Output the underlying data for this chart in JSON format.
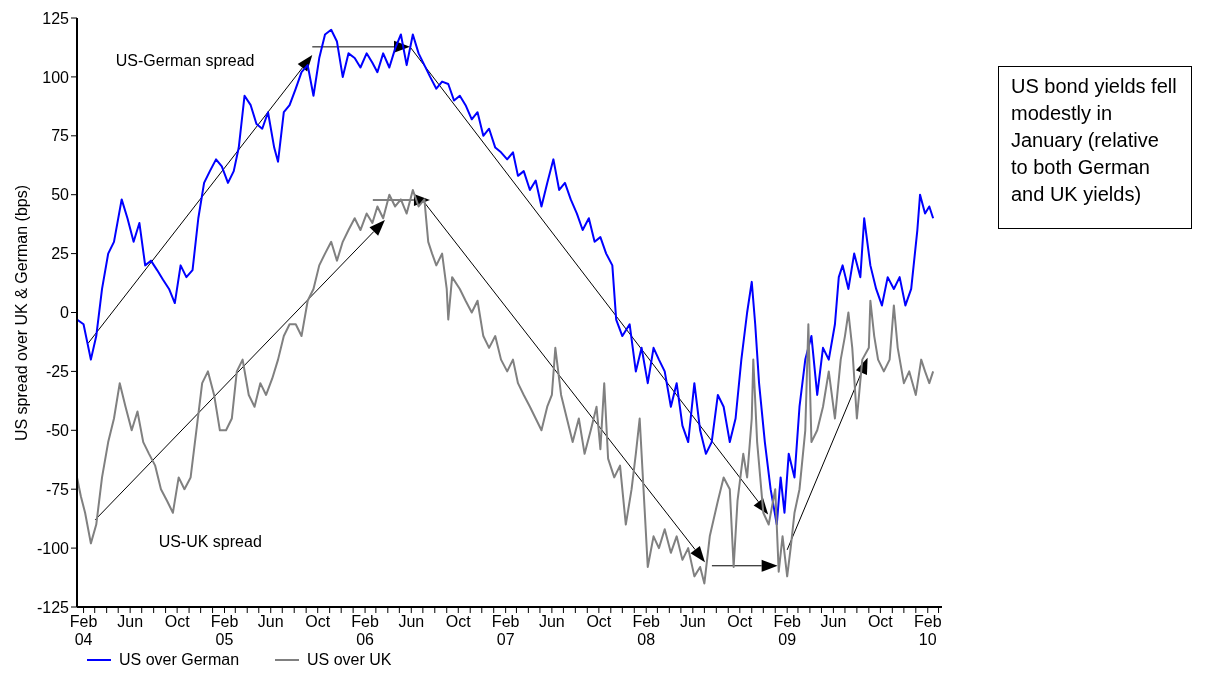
{
  "chart_data": {
    "type": "line",
    "ylabel": "US spread over UK & German (bps)",
    "xlim": [
      "2004-01-15",
      "2010-03-10"
    ],
    "xticks": [
      {
        "value": "2004-02-01",
        "label": "Feb 04"
      },
      {
        "value": "2004-03-01",
        "label": null
      },
      {
        "value": "2004-04-01",
        "label": null
      },
      {
        "value": "2004-05-01",
        "label": null
      },
      {
        "value": "2004-06-01",
        "label": "Jun"
      },
      {
        "value": "2004-07-01",
        "label": null
      },
      {
        "value": "2004-08-01",
        "label": null
      },
      {
        "value": "2004-09-01",
        "label": null
      },
      {
        "value": "2004-10-01",
        "label": "Oct"
      },
      {
        "value": "2004-11-01",
        "label": null
      },
      {
        "value": "2004-12-01",
        "label": null
      },
      {
        "value": "2005-01-01",
        "label": null
      },
      {
        "value": "2005-02-01",
        "label": "Feb 05"
      },
      {
        "value": "2005-03-01",
        "label": null
      },
      {
        "value": "2005-04-01",
        "label": null
      },
      {
        "value": "2005-05-01",
        "label": null
      },
      {
        "value": "2005-06-01",
        "label": "Jun"
      },
      {
        "value": "2005-07-01",
        "label": null
      },
      {
        "value": "2005-08-01",
        "label": null
      },
      {
        "value": "2005-09-01",
        "label": null
      },
      {
        "value": "2005-10-01",
        "label": "Oct"
      },
      {
        "value": "2005-11-01",
        "label": null
      },
      {
        "value": "2005-12-01",
        "label": null
      },
      {
        "value": "2006-01-01",
        "label": null
      },
      {
        "value": "2006-02-01",
        "label": "Feb 06"
      },
      {
        "value": "2006-03-01",
        "label": null
      },
      {
        "value": "2006-04-01",
        "label": null
      },
      {
        "value": "2006-05-01",
        "label": null
      },
      {
        "value": "2006-06-01",
        "label": "Jun"
      },
      {
        "value": "2006-07-01",
        "label": null
      },
      {
        "value": "2006-08-01",
        "label": null
      },
      {
        "value": "2006-09-01",
        "label": null
      },
      {
        "value": "2006-10-01",
        "label": "Oct"
      },
      {
        "value": "2006-11-01",
        "label": null
      },
      {
        "value": "2006-12-01",
        "label": null
      },
      {
        "value": "2007-01-01",
        "label": null
      },
      {
        "value": "2007-02-01",
        "label": "Feb 07"
      },
      {
        "value": "2007-03-01",
        "label": null
      },
      {
        "value": "2007-04-01",
        "label": null
      },
      {
        "value": "2007-05-01",
        "label": null
      },
      {
        "value": "2007-06-01",
        "label": "Jun"
      },
      {
        "value": "2007-07-01",
        "label": null
      },
      {
        "value": "2007-08-01",
        "label": null
      },
      {
        "value": "2007-09-01",
        "label": null
      },
      {
        "value": "2007-10-01",
        "label": "Oct"
      },
      {
        "value": "2007-11-01",
        "label": null
      },
      {
        "value": "2007-12-01",
        "label": null
      },
      {
        "value": "2008-01-01",
        "label": null
      },
      {
        "value": "2008-02-01",
        "label": "Feb 08"
      },
      {
        "value": "2008-03-01",
        "label": null
      },
      {
        "value": "2008-04-01",
        "label": null
      },
      {
        "value": "2008-05-01",
        "label": null
      },
      {
        "value": "2008-06-01",
        "label": "Jun"
      },
      {
        "value": "2008-07-01",
        "label": null
      },
      {
        "value": "2008-08-01",
        "label": null
      },
      {
        "value": "2008-09-01",
        "label": null
      },
      {
        "value": "2008-10-01",
        "label": "Oct"
      },
      {
        "value": "2008-11-01",
        "label": null
      },
      {
        "value": "2008-12-01",
        "label": null
      },
      {
        "value": "2009-01-01",
        "label": null
      },
      {
        "value": "2009-02-01",
        "label": "Feb 09"
      },
      {
        "value": "2009-03-01",
        "label": null
      },
      {
        "value": "2009-04-01",
        "label": null
      },
      {
        "value": "2009-05-01",
        "label": null
      },
      {
        "value": "2009-06-01",
        "label": "Jun"
      },
      {
        "value": "2009-07-01",
        "label": null
      },
      {
        "value": "2009-08-01",
        "label": null
      },
      {
        "value": "2009-09-01",
        "label": null
      },
      {
        "value": "2009-10-01",
        "label": "Oct"
      },
      {
        "value": "2009-11-01",
        "label": null
      },
      {
        "value": "2009-12-01",
        "label": null
      },
      {
        "value": "2010-01-01",
        "label": null
      },
      {
        "value": "2010-02-01",
        "label": "Feb 10"
      },
      {
        "value": "2010-03-01",
        "label": null
      }
    ],
    "ylim": [
      -125,
      125
    ],
    "yticks": [
      -125,
      -100,
      -75,
      -50,
      -25,
      0,
      25,
      50,
      75,
      100,
      125
    ],
    "legend": "bottom",
    "marker": "none",
    "line_style": "solid",
    "annotations": [
      "US bond yields fell modestly in January (relative to both German and UK yields)",
      "US-German spread",
      "US-UK spread"
    ],
    "series": [
      {
        "name": "US over German",
        "color": "#0000ff",
        "x": [
          "2004-01-15",
          "2004-02-01",
          "2004-02-20",
          "2004-03-05",
          "2004-03-20",
          "2004-04-05",
          "2004-04-20",
          "2004-05-10",
          "2004-05-25",
          "2004-06-10",
          "2004-06-25",
          "2004-07-10",
          "2004-07-25",
          "2004-08-10",
          "2004-08-25",
          "2004-09-10",
          "2004-09-25",
          "2004-10-10",
          "2004-10-25",
          "2004-11-10",
          "2004-11-25",
          "2004-12-10",
          "2004-12-25",
          "2005-01-10",
          "2005-01-25",
          "2005-02-10",
          "2005-02-25",
          "2005-03-10",
          "2005-03-25",
          "2005-04-10",
          "2005-04-25",
          "2005-05-10",
          "2005-05-25",
          "2005-06-10",
          "2005-06-20",
          "2005-07-05",
          "2005-07-20",
          "2005-08-05",
          "2005-08-20",
          "2005-09-05",
          "2005-09-20",
          "2005-10-05",
          "2005-10-20",
          "2005-11-05",
          "2005-11-20",
          "2005-12-05",
          "2005-12-20",
          "2006-01-05",
          "2006-01-20",
          "2006-02-05",
          "2006-02-20",
          "2006-03-05",
          "2006-03-20",
          "2006-04-05",
          "2006-04-20",
          "2006-05-05",
          "2006-05-20",
          "2006-06-05",
          "2006-06-20",
          "2006-07-05",
          "2006-07-20",
          "2006-08-05",
          "2006-08-20",
          "2006-09-05",
          "2006-09-20",
          "2006-10-05",
          "2006-10-20",
          "2006-11-05",
          "2006-11-20",
          "2006-12-05",
          "2006-12-20",
          "2007-01-05",
          "2007-01-20",
          "2007-02-05",
          "2007-02-20",
          "2007-03-05",
          "2007-03-20",
          "2007-04-05",
          "2007-04-20",
          "2007-05-05",
          "2007-05-20",
          "2007-06-05",
          "2007-06-20",
          "2007-07-05",
          "2007-07-20",
          "2007-08-05",
          "2007-08-20",
          "2007-09-05",
          "2007-09-20",
          "2007-10-05",
          "2007-10-20",
          "2007-11-05",
          "2007-11-15",
          "2007-12-01",
          "2007-12-20",
          "2008-01-05",
          "2008-01-20",
          "2008-02-05",
          "2008-02-20",
          "2008-03-05",
          "2008-03-20",
          "2008-04-05",
          "2008-04-20",
          "2008-05-05",
          "2008-05-20",
          "2008-06-05",
          "2008-06-20",
          "2008-07-05",
          "2008-07-20",
          "2008-08-05",
          "2008-08-20",
          "2008-09-05",
          "2008-09-20",
          "2008-10-05",
          "2008-10-20",
          "2008-11-01",
          "2008-11-10",
          "2008-11-20",
          "2008-12-05",
          "2008-12-20",
          "2009-01-05",
          "2009-01-15",
          "2009-01-25",
          "2009-02-05",
          "2009-02-20",
          "2009-03-05",
          "2009-03-20",
          "2009-04-05",
          "2009-04-20",
          "2009-05-05",
          "2009-05-20",
          "2009-06-05",
          "2009-06-15",
          "2009-06-25",
          "2009-07-10",
          "2009-07-25",
          "2009-08-10",
          "2009-08-20",
          "2009-09-05",
          "2009-09-20",
          "2009-10-05",
          "2009-10-20",
          "2009-11-05",
          "2009-11-20",
          "2009-12-05",
          "2009-12-20",
          "2010-01-05",
          "2010-01-12",
          "2010-01-25",
          "2010-02-05",
          "2010-02-15"
        ],
        "values": [
          -3,
          -5,
          -20,
          -10,
          10,
          25,
          30,
          48,
          40,
          30,
          38,
          20,
          22,
          18,
          14,
          10,
          4,
          20,
          15,
          18,
          40,
          55,
          60,
          65,
          62,
          55,
          60,
          70,
          92,
          88,
          80,
          78,
          85,
          70,
          64,
          85,
          88,
          95,
          102,
          105,
          92,
          108,
          118,
          120,
          115,
          100,
          110,
          108,
          104,
          110,
          106,
          102,
          110,
          104,
          112,
          118,
          105,
          118,
          110,
          105,
          100,
          95,
          98,
          97,
          90,
          92,
          88,
          82,
          85,
          75,
          78,
          70,
          68,
          65,
          68,
          58,
          60,
          52,
          56,
          45,
          55,
          65,
          52,
          55,
          48,
          42,
          35,
          40,
          30,
          32,
          25,
          20,
          -3,
          -10,
          -5,
          -25,
          -15,
          -30,
          -15,
          -20,
          -25,
          -40,
          -30,
          -48,
          -55,
          -30,
          -50,
          -60,
          -55,
          -35,
          -40,
          -55,
          -45,
          -20,
          0,
          13,
          -5,
          -30,
          -55,
          -75,
          -90,
          -70,
          -85,
          -60,
          -70,
          -40,
          -20,
          -10,
          -35,
          -15,
          -20,
          -5,
          15,
          20,
          10,
          25,
          15,
          40,
          20,
          10,
          3,
          15,
          10,
          15,
          3,
          10,
          35,
          50,
          42,
          45,
          40
        ]
      },
      {
        "name": "US over UK",
        "color": "#808080",
        "x": [
          "2004-01-15",
          "2004-01-25",
          "2004-02-05",
          "2004-02-20",
          "2004-03-05",
          "2004-03-20",
          "2004-04-05",
          "2004-04-20",
          "2004-05-05",
          "2004-05-20",
          "2004-06-05",
          "2004-06-20",
          "2004-07-05",
          "2004-07-20",
          "2004-08-05",
          "2004-08-20",
          "2004-09-05",
          "2004-09-20",
          "2004-10-05",
          "2004-10-20",
          "2004-11-05",
          "2004-11-20",
          "2004-12-05",
          "2004-12-20",
          "2005-01-05",
          "2005-01-20",
          "2005-02-05",
          "2005-02-20",
          "2005-03-05",
          "2005-03-20",
          "2005-04-05",
          "2005-04-20",
          "2005-05-05",
          "2005-05-20",
          "2005-06-05",
          "2005-06-20",
          "2005-07-05",
          "2005-07-20",
          "2005-08-05",
          "2005-08-20",
          "2005-09-05",
          "2005-09-20",
          "2005-10-05",
          "2005-10-20",
          "2005-11-05",
          "2005-11-20",
          "2005-12-05",
          "2005-12-20",
          "2006-01-05",
          "2006-01-20",
          "2006-02-05",
          "2006-02-20",
          "2006-03-05",
          "2006-03-20",
          "2006-04-05",
          "2006-04-20",
          "2006-05-05",
          "2006-05-20",
          "2006-06-05",
          "2006-06-20",
          "2006-07-05",
          "2006-07-15",
          "2006-07-25",
          "2006-08-05",
          "2006-08-20",
          "2006-09-01",
          "2006-09-05",
          "2006-09-15",
          "2006-10-05",
          "2006-10-20",
          "2006-11-05",
          "2006-11-20",
          "2006-12-05",
          "2006-12-20",
          "2007-01-05",
          "2007-01-20",
          "2007-02-05",
          "2007-02-20",
          "2007-03-05",
          "2007-03-20",
          "2007-04-05",
          "2007-04-20",
          "2007-05-05",
          "2007-05-20",
          "2007-06-01",
          "2007-06-10",
          "2007-06-25",
          "2007-07-10",
          "2007-07-25",
          "2007-08-10",
          "2007-08-25",
          "2007-09-10",
          "2007-09-25",
          "2007-10-05",
          "2007-10-15",
          "2007-10-25",
          "2007-11-10",
          "2007-11-25",
          "2007-12-10",
          "2007-12-25",
          "2008-01-05",
          "2008-01-15",
          "2008-01-25",
          "2008-02-05",
          "2008-02-20",
          "2008-03-05",
          "2008-03-20",
          "2008-04-05",
          "2008-04-20",
          "2008-05-05",
          "2008-05-20",
          "2008-06-05",
          "2008-06-20",
          "2008-07-01",
          "2008-07-15",
          "2008-08-05",
          "2008-08-20",
          "2008-09-05",
          "2008-09-15",
          "2008-09-25",
          "2008-10-10",
          "2008-10-20",
          "2008-11-01",
          "2008-11-05",
          "2008-11-15",
          "2008-12-01",
          "2008-12-15",
          "2009-01-01",
          "2009-01-10",
          "2009-01-20",
          "2009-02-01",
          "2009-02-10",
          "2009-02-20",
          "2009-03-05",
          "2009-03-20",
          "2009-03-28",
          "2009-04-05",
          "2009-04-20",
          "2009-05-05",
          "2009-05-20",
          "2009-06-05",
          "2009-06-20",
          "2009-07-01",
          "2009-07-10",
          "2009-07-20",
          "2009-08-01",
          "2009-08-15",
          "2009-09-01",
          "2009-09-05",
          "2009-09-15",
          "2009-09-25",
          "2009-10-10",
          "2009-10-25",
          "2009-11-05",
          "2009-11-15",
          "2009-12-01",
          "2009-12-15",
          "2010-01-01",
          "2010-01-15",
          "2010-01-25",
          "2010-02-05",
          "2010-02-15"
        ],
        "values": [
          -70,
          -78,
          -85,
          -98,
          -90,
          -70,
          -55,
          -45,
          -30,
          -40,
          -50,
          -42,
          -55,
          -60,
          -65,
          -75,
          -80,
          -85,
          -70,
          -75,
          -70,
          -50,
          -30,
          -25,
          -35,
          -50,
          -50,
          -45,
          -25,
          -20,
          -35,
          -40,
          -30,
          -35,
          -28,
          -20,
          -10,
          -5,
          -5,
          -10,
          5,
          10,
          20,
          25,
          30,
          22,
          30,
          35,
          40,
          35,
          42,
          38,
          45,
          40,
          50,
          45,
          48,
          42,
          52,
          45,
          48,
          30,
          25,
          20,
          25,
          10,
          -3,
          15,
          10,
          5,
          0,
          5,
          -10,
          -15,
          -10,
          -20,
          -25,
          -20,
          -30,
          -35,
          -40,
          -45,
          -50,
          -40,
          -35,
          -15,
          -35,
          -45,
          -55,
          -45,
          -60,
          -50,
          -40,
          -58,
          -30,
          -62,
          -70,
          -65,
          -90,
          -75,
          -60,
          -45,
          -75,
          -108,
          -95,
          -100,
          -92,
          -102,
          -95,
          -105,
          -100,
          -112,
          -108,
          -115,
          -95,
          -80,
          -70,
          -75,
          -108,
          -80,
          -60,
          -70,
          -45,
          -20,
          -55,
          -85,
          -90,
          -75,
          -110,
          -95,
          -112,
          -100,
          -85,
          -75,
          -50,
          -5,
          -55,
          -50,
          -40,
          -25,
          -45,
          -20,
          -10,
          0,
          -15,
          -45,
          -20,
          -15,
          5,
          -10,
          -20,
          -25,
          -20,
          3,
          -15,
          -30,
          -25,
          -35,
          -20,
          -25,
          -30,
          -25
        ]
      }
    ]
  }
}
